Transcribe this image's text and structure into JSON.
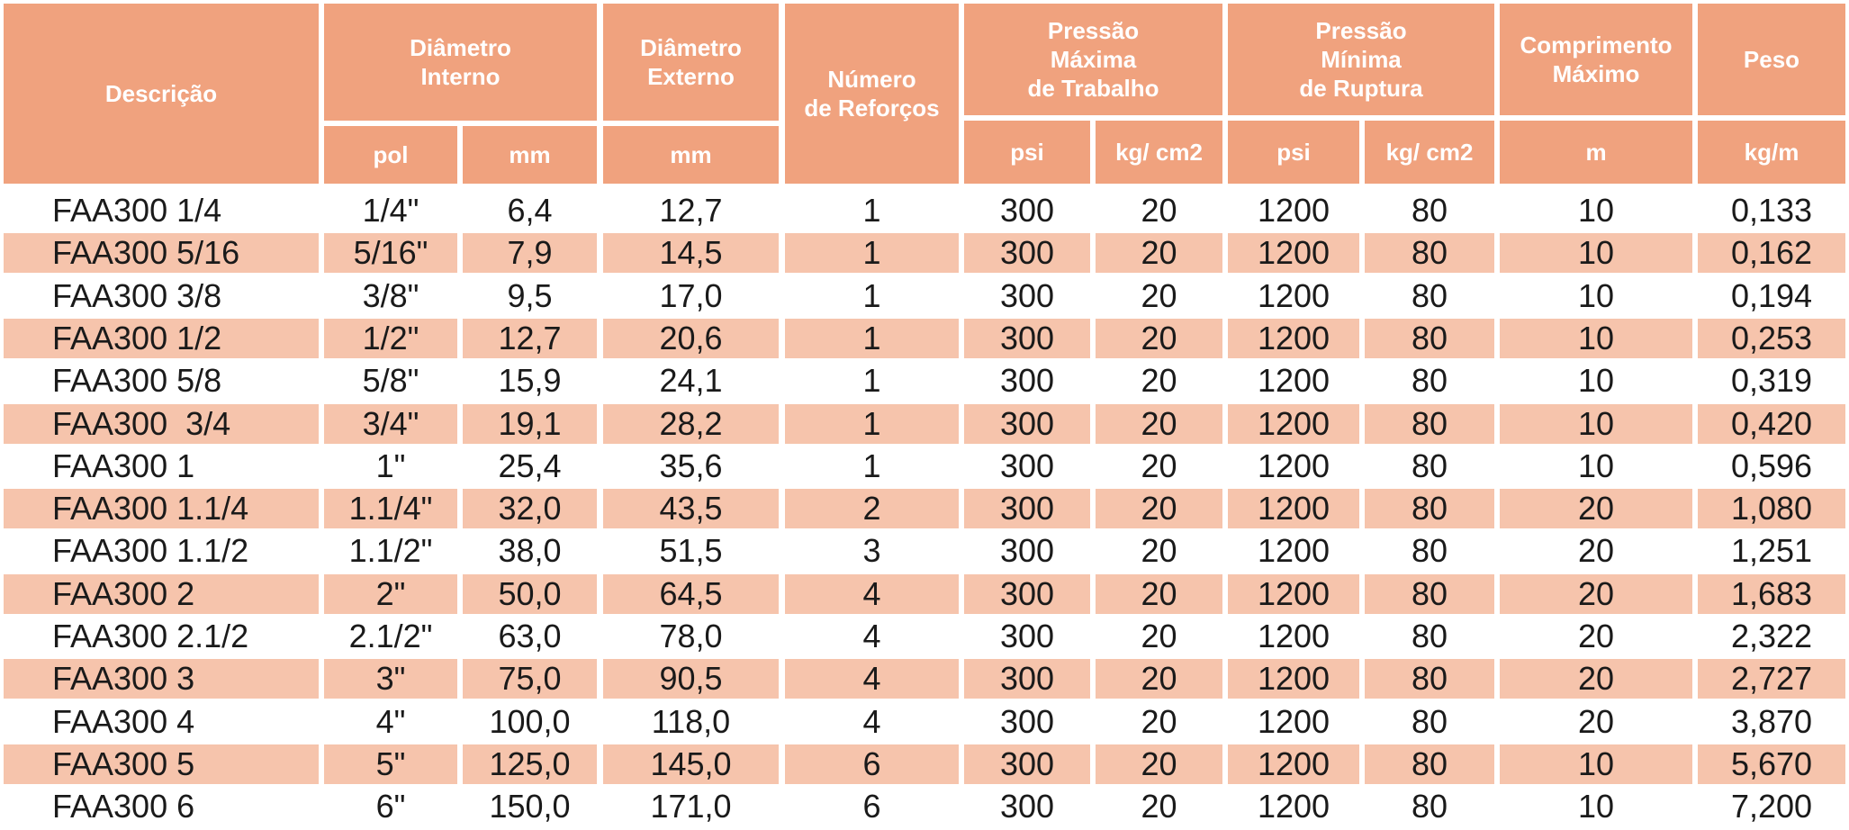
{
  "header": {
    "descricao": "Descrição",
    "diam_int": "Diâmetro\nInterno",
    "diam_ext": "Diâmetro\nExterno",
    "reforcos": "Número\nde Reforços",
    "pressao_max": "Pressão\nMáxima\nde Trabalho",
    "pressao_min": "Pressão\nMínima\nde Ruptura",
    "comprimento": "Comprimento\nMáximo",
    "peso": "Peso",
    "units": {
      "pol": "pol",
      "mm_int": "mm",
      "mm_ext": "mm",
      "psi_max": "psi",
      "kg_max": "kg/ cm2",
      "psi_min": "psi",
      "kg_min": "kg/ cm2",
      "m": "m",
      "kgm": "kg/m"
    }
  },
  "rows": [
    [
      "FAA300 1/4",
      "1/4\"",
      "6,4",
      "12,7",
      "1",
      "300",
      "20",
      "1200",
      "80",
      "10",
      "0,133"
    ],
    [
      "FAA300 5/16",
      "5/16\"",
      "7,9",
      "14,5",
      "1",
      "300",
      "20",
      "1200",
      "80",
      "10",
      "0,162"
    ],
    [
      "FAA300 3/8",
      "3/8\"",
      "9,5",
      "17,0",
      "1",
      "300",
      "20",
      "1200",
      "80",
      "10",
      "0,194"
    ],
    [
      "FAA300 1/2",
      "1/2\"",
      "12,7",
      "20,6",
      "1",
      "300",
      "20",
      "1200",
      "80",
      "10",
      "0,253"
    ],
    [
      "FAA300 5/8",
      "5/8\"",
      "15,9",
      "24,1",
      "1",
      "300",
      "20",
      "1200",
      "80",
      "10",
      "0,319"
    ],
    [
      "FAA300  3/4",
      "3/4\"",
      "19,1",
      "28,2",
      "1",
      "300",
      "20",
      "1200",
      "80",
      "10",
      "0,420"
    ],
    [
      "FAA300 1",
      "1\"",
      "25,4",
      "35,6",
      "1",
      "300",
      "20",
      "1200",
      "80",
      "10",
      "0,596"
    ],
    [
      "FAA300 1.1/4",
      "1.1/4\"",
      "32,0",
      "43,5",
      "2",
      "300",
      "20",
      "1200",
      "80",
      "20",
      "1,080"
    ],
    [
      "FAA300 1.1/2",
      "1.1/2\"",
      "38,0",
      "51,5",
      "3",
      "300",
      "20",
      "1200",
      "80",
      "20",
      "1,251"
    ],
    [
      "FAA300 2",
      "2\"",
      "50,0",
      "64,5",
      "4",
      "300",
      "20",
      "1200",
      "80",
      "20",
      "1,683"
    ],
    [
      "FAA300 2.1/2",
      "2.1/2\"",
      "63,0",
      "78,0",
      "4",
      "300",
      "20",
      "1200",
      "80",
      "20",
      "2,322"
    ],
    [
      "FAA300 3",
      "3\"",
      "75,0",
      "90,5",
      "4",
      "300",
      "20",
      "1200",
      "80",
      "20",
      "2,727"
    ],
    [
      "FAA300 4",
      "4\"",
      "100,0",
      "118,0",
      "4",
      "300",
      "20",
      "1200",
      "80",
      "20",
      "3,870"
    ],
    [
      "FAA300 5",
      "5\"",
      "125,0",
      "145,0",
      "6",
      "300",
      "20",
      "1200",
      "80",
      "10",
      "5,670"
    ],
    [
      "FAA300 6",
      "6\"",
      "150,0",
      "171,0",
      "6",
      "300",
      "20",
      "1200",
      "80",
      "10",
      "7,200"
    ]
  ],
  "colors": {
    "header_bg": "#F0A27E",
    "header_text": "#ffffff",
    "row_shade": "#F6C4AC",
    "row_plain": "#ffffff"
  }
}
